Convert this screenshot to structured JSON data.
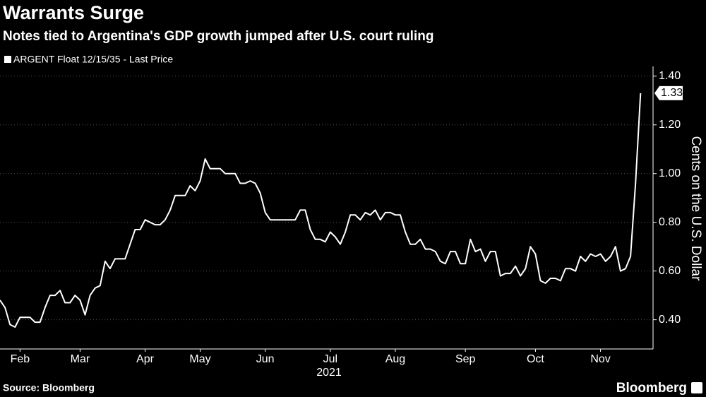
{
  "chart_data": {
    "type": "line",
    "title": "Warrants Surge",
    "subtitle": "Notes tied to Argentina's GDP growth jumped after U.S. court ruling",
    "ylabel": "Cents on the U.S. Dollar",
    "xlabel": "2021",
    "source": "Source: Bloomberg",
    "brand": "Bloomberg",
    "grid": true,
    "series": [
      {
        "name": "ARGENT Float 12/15/35 - Last Price",
        "color": "#ffffff",
        "values": [
          0.48,
          0.45,
          0.38,
          0.37,
          0.41,
          0.41,
          0.41,
          0.39,
          0.39,
          0.45,
          0.5,
          0.5,
          0.52,
          0.47,
          0.47,
          0.5,
          0.48,
          0.42,
          0.5,
          0.53,
          0.54,
          0.64,
          0.61,
          0.65,
          0.65,
          0.65,
          0.71,
          0.77,
          0.77,
          0.81,
          0.8,
          0.79,
          0.79,
          0.81,
          0.85,
          0.91,
          0.91,
          0.91,
          0.95,
          0.93,
          0.97,
          1.06,
          1.02,
          1.02,
          1.02,
          1.0,
          1.0,
          1.0,
          0.96,
          0.96,
          0.97,
          0.96,
          0.92,
          0.84,
          0.81,
          0.81,
          0.81,
          0.81,
          0.81,
          0.81,
          0.85,
          0.85,
          0.77,
          0.73,
          0.73,
          0.72,
          0.76,
          0.74,
          0.71,
          0.76,
          0.83,
          0.83,
          0.81,
          0.84,
          0.83,
          0.85,
          0.81,
          0.84,
          0.84,
          0.83,
          0.83,
          0.76,
          0.71,
          0.71,
          0.73,
          0.69,
          0.69,
          0.68,
          0.64,
          0.63,
          0.68,
          0.68,
          0.63,
          0.63,
          0.73,
          0.68,
          0.69,
          0.64,
          0.68,
          0.68,
          0.58,
          0.59,
          0.59,
          0.62,
          0.58,
          0.61,
          0.7,
          0.67,
          0.56,
          0.55,
          0.57,
          0.57,
          0.56,
          0.61,
          0.61,
          0.6,
          0.66,
          0.64,
          0.67,
          0.66,
          0.67,
          0.64,
          0.66,
          0.7,
          0.6,
          0.61,
          0.66,
          0.96,
          1.33
        ]
      }
    ],
    "xlim": [
      0,
      130.5
    ],
    "xticks": [
      {
        "value": 4,
        "label": "Feb"
      },
      {
        "value": 16,
        "label": "Mar"
      },
      {
        "value": 29,
        "label": "Apr"
      },
      {
        "value": 40,
        "label": "May"
      },
      {
        "value": 53,
        "label": "Jun"
      },
      {
        "value": 66,
        "label": "Jul"
      },
      {
        "value": 79,
        "label": "Aug"
      },
      {
        "value": 93,
        "label": "Sep"
      },
      {
        "value": 107,
        "label": "Oct"
      },
      {
        "value": 120,
        "label": "Nov"
      }
    ],
    "ylim": [
      0.28,
      1.44
    ],
    "yticks": [
      {
        "value": 0.4,
        "label": "0.40"
      },
      {
        "value": 0.6,
        "label": "0.60"
      },
      {
        "value": 0.8,
        "label": "0.80"
      },
      {
        "value": 1.0,
        "label": "1.00"
      },
      {
        "value": 1.2,
        "label": "1.20"
      },
      {
        "value": 1.4,
        "label": "1.40"
      }
    ]
  }
}
